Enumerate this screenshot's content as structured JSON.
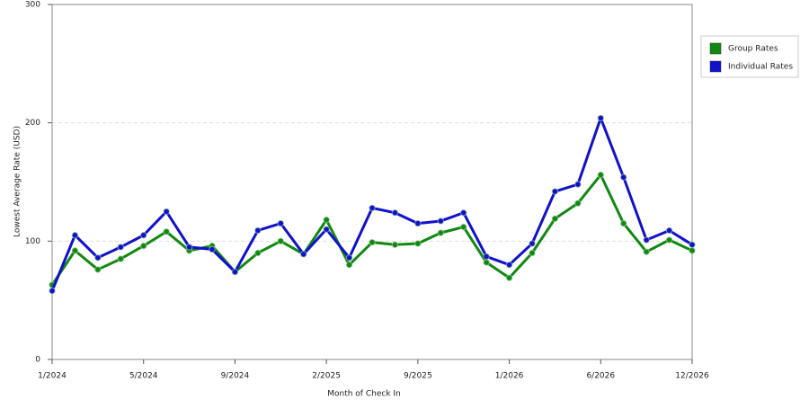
{
  "chart_data": {
    "type": "line",
    "x_label": "Month of Check In",
    "y_label": "Lowest Average Rate (USD)",
    "categories": [
      "1/2024",
      null,
      null,
      null,
      "5/2024",
      null,
      null,
      null,
      "9/2024",
      null,
      null,
      null,
      "2/2025",
      null,
      null,
      null,
      "9/2025",
      null,
      null,
      null,
      "1/2026",
      null,
      null,
      null,
      "6/2026",
      null,
      null,
      null,
      "12/2026"
    ],
    "series": [
      {
        "name": "Group Rates",
        "color": "#118811",
        "values": [
          63,
          92,
          76,
          85,
          96,
          108,
          92,
          96,
          74,
          90,
          100,
          89,
          118,
          80,
          99,
          97,
          98,
          107,
          112,
          82,
          69,
          90,
          119,
          132,
          156,
          115,
          91,
          101,
          92
        ]
      },
      {
        "name": "Individual Rates",
        "color": "#1111cc",
        "values": [
          58,
          105,
          86,
          95,
          105,
          125,
          95,
          93,
          74,
          109,
          115,
          89,
          110,
          86,
          128,
          124,
          115,
          117,
          124,
          87,
          80,
          98,
          142,
          148,
          204,
          154,
          101,
          109,
          97
        ]
      }
    ],
    "ylim": [
      0,
      300
    ],
    "yticks": [
      0,
      100,
      200,
      300
    ],
    "grid": true,
    "legend": "right"
  }
}
